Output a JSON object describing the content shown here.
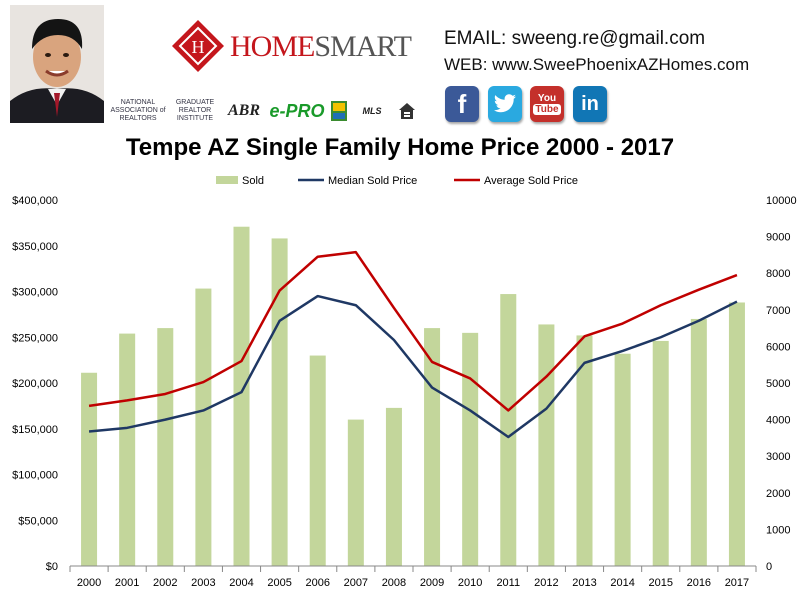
{
  "header": {
    "brand": {
      "first": "HOME",
      "second": "SMART"
    },
    "badges": {
      "nar": "NATIONAL ASSOCIATION of REALTORS",
      "grad": "GRADUATE REALTOR INSTITUTE",
      "abr": "ABR",
      "epro": "e-PRO",
      "mls": "MLS"
    },
    "contact": {
      "email": "EMAIL: sweeng.re@gmail.com",
      "web": "WEB: www.SweePhoenixAZHomes.com"
    },
    "social": {
      "facebook": "f",
      "twitter": "twitter",
      "youtube_top": "You",
      "youtube_bottom": "Tube",
      "linkedin": "in"
    }
  },
  "chart_data": {
    "type": "bar",
    "title": "Tempe AZ Single Family Home Price 2000 - 2017",
    "categories": [
      "2000",
      "2001",
      "2002",
      "2003",
      "2004",
      "2005",
      "2006",
      "2007",
      "2008",
      "2009",
      "2010",
      "2011",
      "2012",
      "2013",
      "2014",
      "2015",
      "2016",
      "2017"
    ],
    "series": [
      {
        "name": "Sold",
        "kind": "bar",
        "axis": "right",
        "color": "#c3d69b",
        "values": [
          5280,
          6350,
          6500,
          7580,
          9270,
          8950,
          5750,
          4000,
          4320,
          6500,
          6370,
          7430,
          6600,
          6300,
          5800,
          6150,
          6750,
          7200
        ]
      },
      {
        "name": "Median Sold Price",
        "kind": "line",
        "axis": "left",
        "color": "#1f3864",
        "values": [
          147000,
          151000,
          160000,
          170000,
          190000,
          268000,
          295000,
          285000,
          247000,
          195000,
          170000,
          141000,
          172000,
          222000,
          235000,
          250000,
          268000,
          289000
        ]
      },
      {
        "name": "Average Sold Price",
        "kind": "line",
        "axis": "left",
        "color": "#c00000",
        "values": [
          175000,
          181000,
          188000,
          201000,
          224000,
          301000,
          338000,
          343000,
          282000,
          223000,
          205000,
          170000,
          207000,
          251000,
          265000,
          285000,
          302000,
          318000
        ]
      }
    ],
    "y_left": {
      "min": 0,
      "max": 400000,
      "ticks": [
        "$0",
        "$50,000",
        "$100,000",
        "$150,000",
        "$200,000",
        "$250,000",
        "$300,000",
        "$350,000",
        "$400,000"
      ]
    },
    "y_right": {
      "min": 0,
      "max": 10000,
      "ticks": [
        "0",
        "1000",
        "2000",
        "3000",
        "4000",
        "5000",
        "6000",
        "7000",
        "8000",
        "9000",
        "10000"
      ]
    },
    "grid": false,
    "legend": "top"
  }
}
